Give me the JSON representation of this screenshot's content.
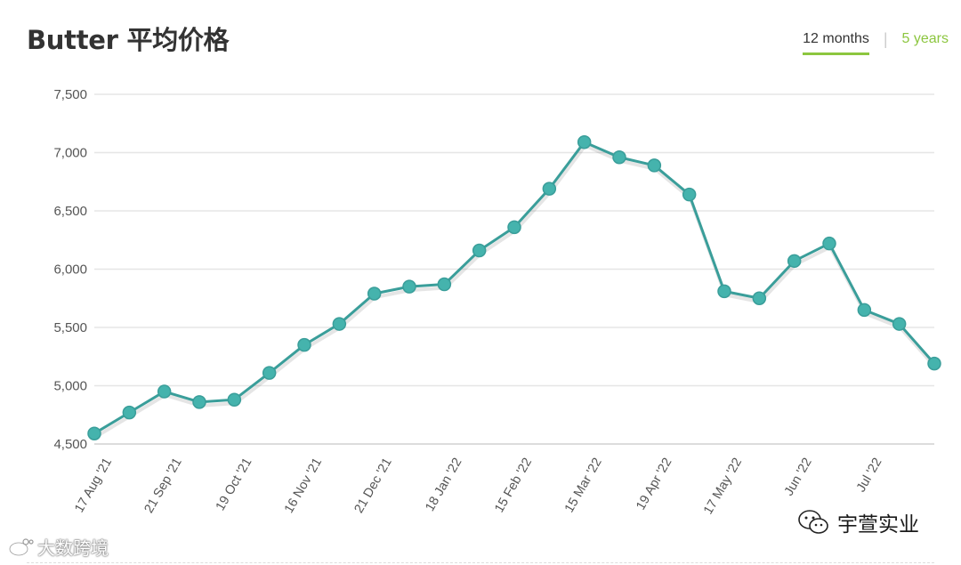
{
  "header": {
    "title": "Butter 平均价格",
    "tabs": [
      {
        "label": "12 months",
        "active": true
      },
      {
        "label": "5 years",
        "active": false
      }
    ]
  },
  "colors": {
    "line": "#3a9e9a",
    "marker": "#45b3ad",
    "accent": "#8cc63f",
    "grid": "#e6e6e6",
    "text": "#333333",
    "axis_text": "#555555"
  },
  "chart_data": {
    "type": "line",
    "title": "Butter 平均价格",
    "xlabel": "",
    "ylabel": "",
    "ylim": [
      4500,
      7500
    ],
    "yticks": [
      "4,500",
      "5,000",
      "5,500",
      "6,000",
      "6,500",
      "7,000",
      "7,500"
    ],
    "ytick_values": [
      4500,
      5000,
      5500,
      6000,
      6500,
      7000,
      7500
    ],
    "xtick_labels": [
      "17 Aug '21",
      "21 Sep '21",
      "19 Oct '21",
      "16 Nov '21",
      "21 Dec '21",
      "18 Jan '22",
      "15 Feb '22",
      "15 Mar '22",
      "19 Apr '22",
      "17 May '22",
      "Jun '22",
      "Jul '22"
    ],
    "xtick_index": [
      0.5,
      2.5,
      4.5,
      6.5,
      8.5,
      10.5,
      12.5,
      14.5,
      16.5,
      18.5,
      20.5,
      22.5
    ],
    "grid": true,
    "series": [
      {
        "values": [
          4590,
          4770,
          4950,
          4860,
          4880,
          5110,
          5350,
          5530,
          5790,
          5850,
          5870,
          6160,
          6360,
          6690,
          7090,
          6960,
          6890,
          6640,
          5810,
          5750,
          6070,
          6220,
          5650,
          5530,
          5190
        ]
      }
    ]
  },
  "watermarks": {
    "left_icon": "weibo-icon",
    "left_text": "大数跨境",
    "right_icon": "wechat-icon",
    "right_text": "宇萱实业"
  }
}
